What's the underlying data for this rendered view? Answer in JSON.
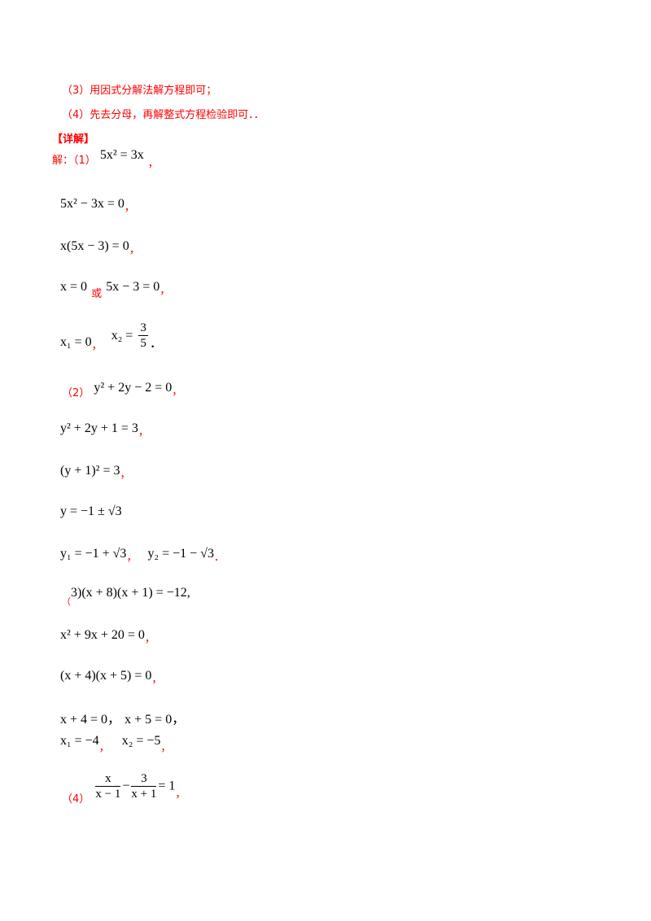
{
  "hints": {
    "hint3": "（3）用因式分解法解方程即可；",
    "hint4": "（4）先去分母，再解整式方程检验即可．．"
  },
  "detail_header": "【详解】",
  "solution_prefix": "解：（1）",
  "labels": {
    "p2": "（2）",
    "p3_paren": "（",
    "p4": "（4）",
    "or_word": "或"
  },
  "lines": {
    "p1_eq": "5x² = 3x",
    "p1_l1": "5x² − 3x = 0",
    "p1_l2": "x(5x − 3) = 0",
    "p1_l3a": "x = 0",
    "p1_l3b": "5x − 3 = 0",
    "p1_l4a": "x₁ = 0",
    "p1_l4b_lhs": "x₂ =",
    "p1_l4b_num": "3",
    "p1_l4b_den": "5",
    "p2_eq": "y² + 2y − 2 = 0",
    "p2_l1": "y² + 2y + 1 = 3",
    "p2_l2": "(y + 1)² = 3",
    "p2_l3": "y = −1 ± √3",
    "p2_l4a": "y₁ = −1 + √3",
    "p2_l4b": "y₂ = −1 − √3",
    "p3_eq": "3)(x + 8)(x + 1) = −12,",
    "p3_l1": "x² + 9x + 20 = 0",
    "p3_l2": "(x + 4)(x + 5) = 0",
    "p3_l3a": "x + 4 = 0，",
    "p3_l3b": "x + 5 = 0，",
    "p3_l4a": "x₁ = −4",
    "p3_l4b": "x₂ = −5",
    "p4_f1_num": "x",
    "p4_f1_den": "x − 1",
    "p4_minus": "−",
    "p4_f2_num": "3",
    "p4_f2_den": "x + 1",
    "p4_rhs": "= 1"
  },
  "punct": {
    "comma": "，",
    "period": "．"
  },
  "colors": {
    "hint": "#ff0000",
    "math": "#000000"
  }
}
